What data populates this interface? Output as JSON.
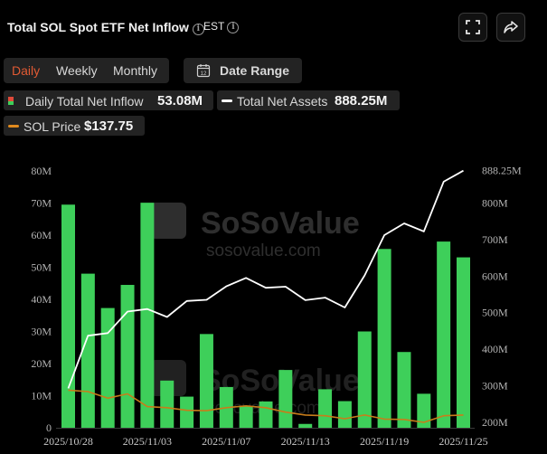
{
  "header": {
    "title": "Total SOL Spot ETF Net Inflow",
    "info_glyph": "i",
    "timezone": "EST"
  },
  "tabs": [
    {
      "label": "Daily",
      "active": true
    },
    {
      "label": "Weekly",
      "active": false
    },
    {
      "label": "Monthly",
      "active": false
    }
  ],
  "date_range": {
    "label": "Date Range",
    "icon_glyph": "12"
  },
  "legend": [
    {
      "name": "Daily Total Net Inflow",
      "value": "53.08M",
      "icon": "inflow-swatch-icon"
    },
    {
      "name": "Total Net Assets",
      "value": "888.25M",
      "icon": "white-line-swatch-icon",
      "color": "#ffffff"
    },
    {
      "name": "SOL Price",
      "value": "$137.75",
      "icon": "orange-line-swatch-icon",
      "color": "#e08a1e"
    }
  ],
  "watermark": {
    "brand": "SoSoValue",
    "url": "sosovalue.com"
  },
  "colors": {
    "bar": "#3ecf5a",
    "assets_line": "#ffffff",
    "price_line": "#c87d1a",
    "accent": "#e05a33"
  },
  "chart_data": {
    "type": "bar",
    "series": [
      {
        "name": "Daily Total Net Inflow",
        "axis": "left",
        "values": [
          69.5,
          48,
          37.3,
          44.5,
          70.1,
          14.7,
          9.7,
          29.2,
          12.7,
          6.8,
          8.2,
          18,
          1.2,
          12,
          8.3,
          30,
          55.7,
          23.6,
          10.6,
          58,
          53.08
        ]
      },
      {
        "name": "Total Net Assets",
        "axis": "right",
        "values": [
          293,
          437,
          444,
          503,
          510,
          488,
          532,
          535,
          572,
          595,
          568,
          571,
          534,
          541,
          514,
          602,
          712,
          744,
          722,
          858,
          888.25
        ]
      },
      {
        "name": "SOL Price",
        "axis": "right",
        "values": [
          288,
          284,
          266,
          278,
          243,
          240,
          233,
          232,
          240,
          245,
          240,
          228,
          220,
          218,
          210,
          220,
          209,
          208,
          200,
          218,
          220
        ]
      }
    ],
    "x_tick_labels": [
      "2025/10/28",
      "2025/11/03",
      "2025/11/07",
      "2025/11/13",
      "2025/11/19",
      "2025/11/25"
    ],
    "x_tick_indices": [
      0,
      4,
      8,
      12,
      16,
      20
    ],
    "y_left": {
      "ticks": [
        "0",
        "10M",
        "20M",
        "30M",
        "40M",
        "50M",
        "60M",
        "70M",
        "80M"
      ],
      "min": 0,
      "max": 80
    },
    "y_right": {
      "ticks": [
        "200M",
        "300M",
        "400M",
        "500M",
        "600M",
        "700M",
        "800M"
      ],
      "min": 200,
      "max": 890
    },
    "end_label": "888.25M",
    "grid": false,
    "legend_position": "top-left"
  }
}
